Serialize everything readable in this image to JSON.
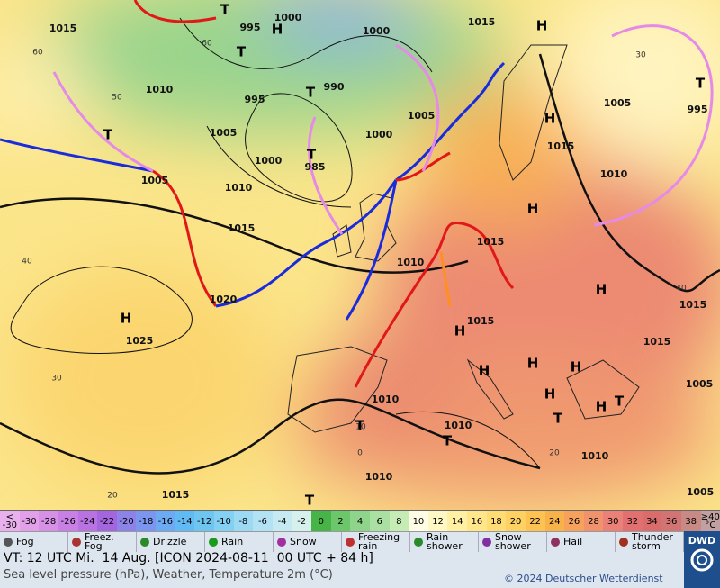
{
  "map": {
    "isobar_labels": [
      "1015",
      "1000",
      "995",
      "1000",
      "1015",
      "1010",
      "995",
      "990",
      "1005",
      "1005",
      "995",
      "1005",
      "1000",
      "1000",
      "985",
      "1015",
      "1010",
      "1005",
      "1010",
      "1015",
      "1015",
      "1010",
      "1020",
      "1025",
      "1015",
      "1015",
      "1015",
      "1010",
      "1010",
      "1005",
      "1010",
      "1010",
      "1015",
      "1005"
    ],
    "pressure_centers": [
      "H",
      "H",
      "T",
      "T",
      "T",
      "T",
      "T",
      "T",
      "H",
      "H",
      "H",
      "H",
      "H",
      "H",
      "H",
      "H",
      "H",
      "H",
      "T",
      "T",
      "T",
      "T",
      "T"
    ],
    "isotherm_labels": [
      "60",
      "60",
      "50",
      "40",
      "30",
      "20",
      "10",
      "0",
      "20",
      "30",
      "40"
    ]
  },
  "color_scale": {
    "items": [
      {
        "label": "<\n-30",
        "color": "#e8b0ec"
      },
      {
        "label": "-30",
        "color": "#e2a0e8"
      },
      {
        "label": "-28",
        "color": "#d690e6"
      },
      {
        "label": "-26",
        "color": "#c880e4"
      },
      {
        "label": "-24",
        "color": "#b872e2"
      },
      {
        "label": "-22",
        "color": "#a466de"
      },
      {
        "label": "-20",
        "color": "#8c82e8"
      },
      {
        "label": "-18",
        "color": "#7c96f0"
      },
      {
        "label": "-16",
        "color": "#6caaf4"
      },
      {
        "label": "-14",
        "color": "#62baf4"
      },
      {
        "label": "-12",
        "color": "#6ec6f0"
      },
      {
        "label": "-10",
        "color": "#84d0f2"
      },
      {
        "label": "-8",
        "color": "#9cdaf4"
      },
      {
        "label": "-6",
        "color": "#b2e2f4"
      },
      {
        "label": "-4",
        "color": "#c6eaf2"
      },
      {
        "label": "-2",
        "color": "#d6f0ee"
      },
      {
        "label": "0",
        "color": "#46b446"
      },
      {
        "label": "2",
        "color": "#6cc66a"
      },
      {
        "label": "4",
        "color": "#8ed48a"
      },
      {
        "label": "6",
        "color": "#aae0a2"
      },
      {
        "label": "8",
        "color": "#c6ecb6"
      },
      {
        "label": "10",
        "color": "#fffde6"
      },
      {
        "label": "12",
        "color": "#fff8c4"
      },
      {
        "label": "14",
        "color": "#fff0a4"
      },
      {
        "label": "16",
        "color": "#ffe68a"
      },
      {
        "label": "18",
        "color": "#ffdc74"
      },
      {
        "label": "20",
        "color": "#ffd062"
      },
      {
        "label": "22",
        "color": "#fdc252"
      },
      {
        "label": "24",
        "color": "#f8b24a"
      },
      {
        "label": "26",
        "color": "#f6a25c"
      },
      {
        "label": "28",
        "color": "#f0926c"
      },
      {
        "label": "30",
        "color": "#ea8078"
      },
      {
        "label": "32",
        "color": "#e27070"
      },
      {
        "label": "34",
        "color": "#da6c6c"
      },
      {
        "label": "36",
        "color": "#d27474"
      },
      {
        "label": "38",
        "color": "#c88a84"
      },
      {
        "label": "≥40\n°C",
        "color": "#c0a0a0"
      }
    ]
  },
  "legend": [
    "Fog",
    "Freez. Fog",
    "Drizzle",
    "Rain",
    "Snow",
    "Freezing rain",
    "Rain shower",
    "Snow shower",
    "Hail",
    "Thunder storm"
  ],
  "footer": {
    "valid_time": "VT: 12 UTC Mi.  14 Aug. [ICON 2024-08-11  00 UTC + 84 h]",
    "description": "Sea level pressure (hPa), Weather, Temperature 2m (°C)",
    "copyright": "© 2024 Deutscher Wetterdienst",
    "logo": "DWD"
  }
}
